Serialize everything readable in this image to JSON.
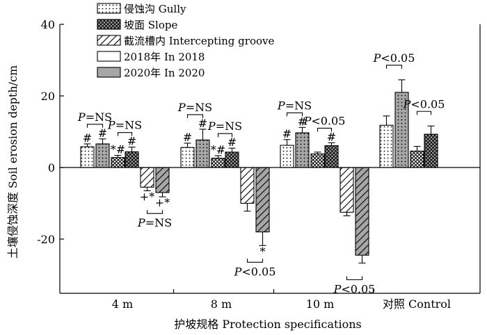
{
  "chart_data": {
    "type": "bar",
    "xlabel": "护坡规格 Protection specifications",
    "ylabel": "土壤侵蚀深度 Soil erosion depth/cm",
    "ylim": [
      -32,
      40
    ],
    "yticks": [
      -20,
      0,
      20,
      40
    ],
    "ytick_labels": [
      "-20",
      "0",
      "20",
      "40"
    ],
    "grid": false,
    "legend_position": "top-left",
    "categories": [
      "4 m",
      "8 m",
      "10 m",
      "对照 Control"
    ],
    "legend": {
      "locations": [
        {
          "key": "gully",
          "label": "侵蚀沟 Gully"
        },
        {
          "key": "slope",
          "label": "坡面 Slope"
        },
        {
          "key": "groove",
          "label": "截流槽内 Intercepting groove"
        }
      ],
      "years": [
        {
          "key": "y2018",
          "label": "2018年 In 2018",
          "color": "#ffffff"
        },
        {
          "key": "y2020",
          "label": "2020年 In 2020",
          "color": "#a6a6a6"
        }
      ]
    },
    "series": [
      {
        "name": "侵蚀沟 Gully 2018年 In 2018",
        "location": "gully",
        "year": "y2018",
        "values": [
          5.8,
          5.6,
          6.2,
          11.8
        ],
        "errors": [
          0.8,
          1.2,
          1.6,
          2.6
        ]
      },
      {
        "name": "侵蚀沟 Gully 2020年 In 2020",
        "location": "gully",
        "year": "y2020",
        "values": [
          6.6,
          7.7,
          9.7,
          21.0
        ],
        "errors": [
          1.4,
          3.0,
          1.5,
          3.5
        ]
      },
      {
        "name": "坡面 Slope 2018年 In 2018",
        "location": "slope",
        "year": "y2018",
        "values": [
          2.8,
          2.6,
          3.8,
          4.6
        ],
        "errors": [
          0.6,
          0.7,
          0.5,
          1.3
        ]
      },
      {
        "name": "坡面 Slope 2020年 In 2020",
        "location": "slope",
        "year": "y2020",
        "values": [
          4.4,
          4.3,
          6.1,
          9.3
        ],
        "errors": [
          1.3,
          1.1,
          0.8,
          2.3
        ]
      },
      {
        "name": "截流槽内 Intercepting groove 2018年 In 2018",
        "location": "groove",
        "year": "y2018",
        "values": [
          -5.5,
          -10.0,
          -12.5,
          null
        ],
        "errors": [
          1.0,
          2.2,
          1.0,
          null
        ]
      },
      {
        "name": "截流槽内 Intercepting groove 2020年 In 2020",
        "location": "groove",
        "year": "y2020",
        "values": [
          -7.0,
          -18.0,
          -24.5,
          null
        ],
        "errors": [
          1.2,
          3.8,
          2.2,
          null
        ]
      }
    ],
    "bar_marks": [
      {
        "group": 0,
        "series": 0,
        "text": "#"
      },
      {
        "group": 0,
        "series": 1,
        "text": "#"
      },
      {
        "group": 0,
        "series": 2,
        "text": "*#"
      },
      {
        "group": 0,
        "series": 3,
        "text": "#"
      },
      {
        "group": 0,
        "series": 4,
        "text": "+*"
      },
      {
        "group": 0,
        "series": 5,
        "text": "+*"
      },
      {
        "group": 1,
        "series": 0,
        "text": "#"
      },
      {
        "group": 1,
        "series": 1,
        "text": "#"
      },
      {
        "group": 1,
        "series": 2,
        "text": "*#"
      },
      {
        "group": 1,
        "series": 3,
        "text": "#"
      },
      {
        "group": 1,
        "series": 5,
        "text": "*"
      },
      {
        "group": 2,
        "series": 0,
        "text": "#"
      },
      {
        "group": 2,
        "series": 1,
        "text": "#"
      },
      {
        "group": 2,
        "series": 3,
        "text": "#"
      }
    ],
    "comparisons": [
      {
        "group": 0,
        "pair": "gully",
        "text": "P=NS"
      },
      {
        "group": 0,
        "pair": "slope",
        "text": "P=NS"
      },
      {
        "group": 0,
        "pair": "groove",
        "text": "P=NS"
      },
      {
        "group": 1,
        "pair": "gully",
        "text": "P=NS"
      },
      {
        "group": 1,
        "pair": "slope",
        "text": "P=NS"
      },
      {
        "group": 1,
        "pair": "groove",
        "text": "P<0.05"
      },
      {
        "group": 2,
        "pair": "gully",
        "text": "P=NS"
      },
      {
        "group": 2,
        "pair": "slope",
        "text": "P<0.05"
      },
      {
        "group": 2,
        "pair": "groove",
        "text": "P<0.05"
      },
      {
        "group": 3,
        "pair": "gully",
        "text": "P<0.05"
      },
      {
        "group": 3,
        "pair": "slope",
        "text": "P<0.05"
      }
    ]
  }
}
